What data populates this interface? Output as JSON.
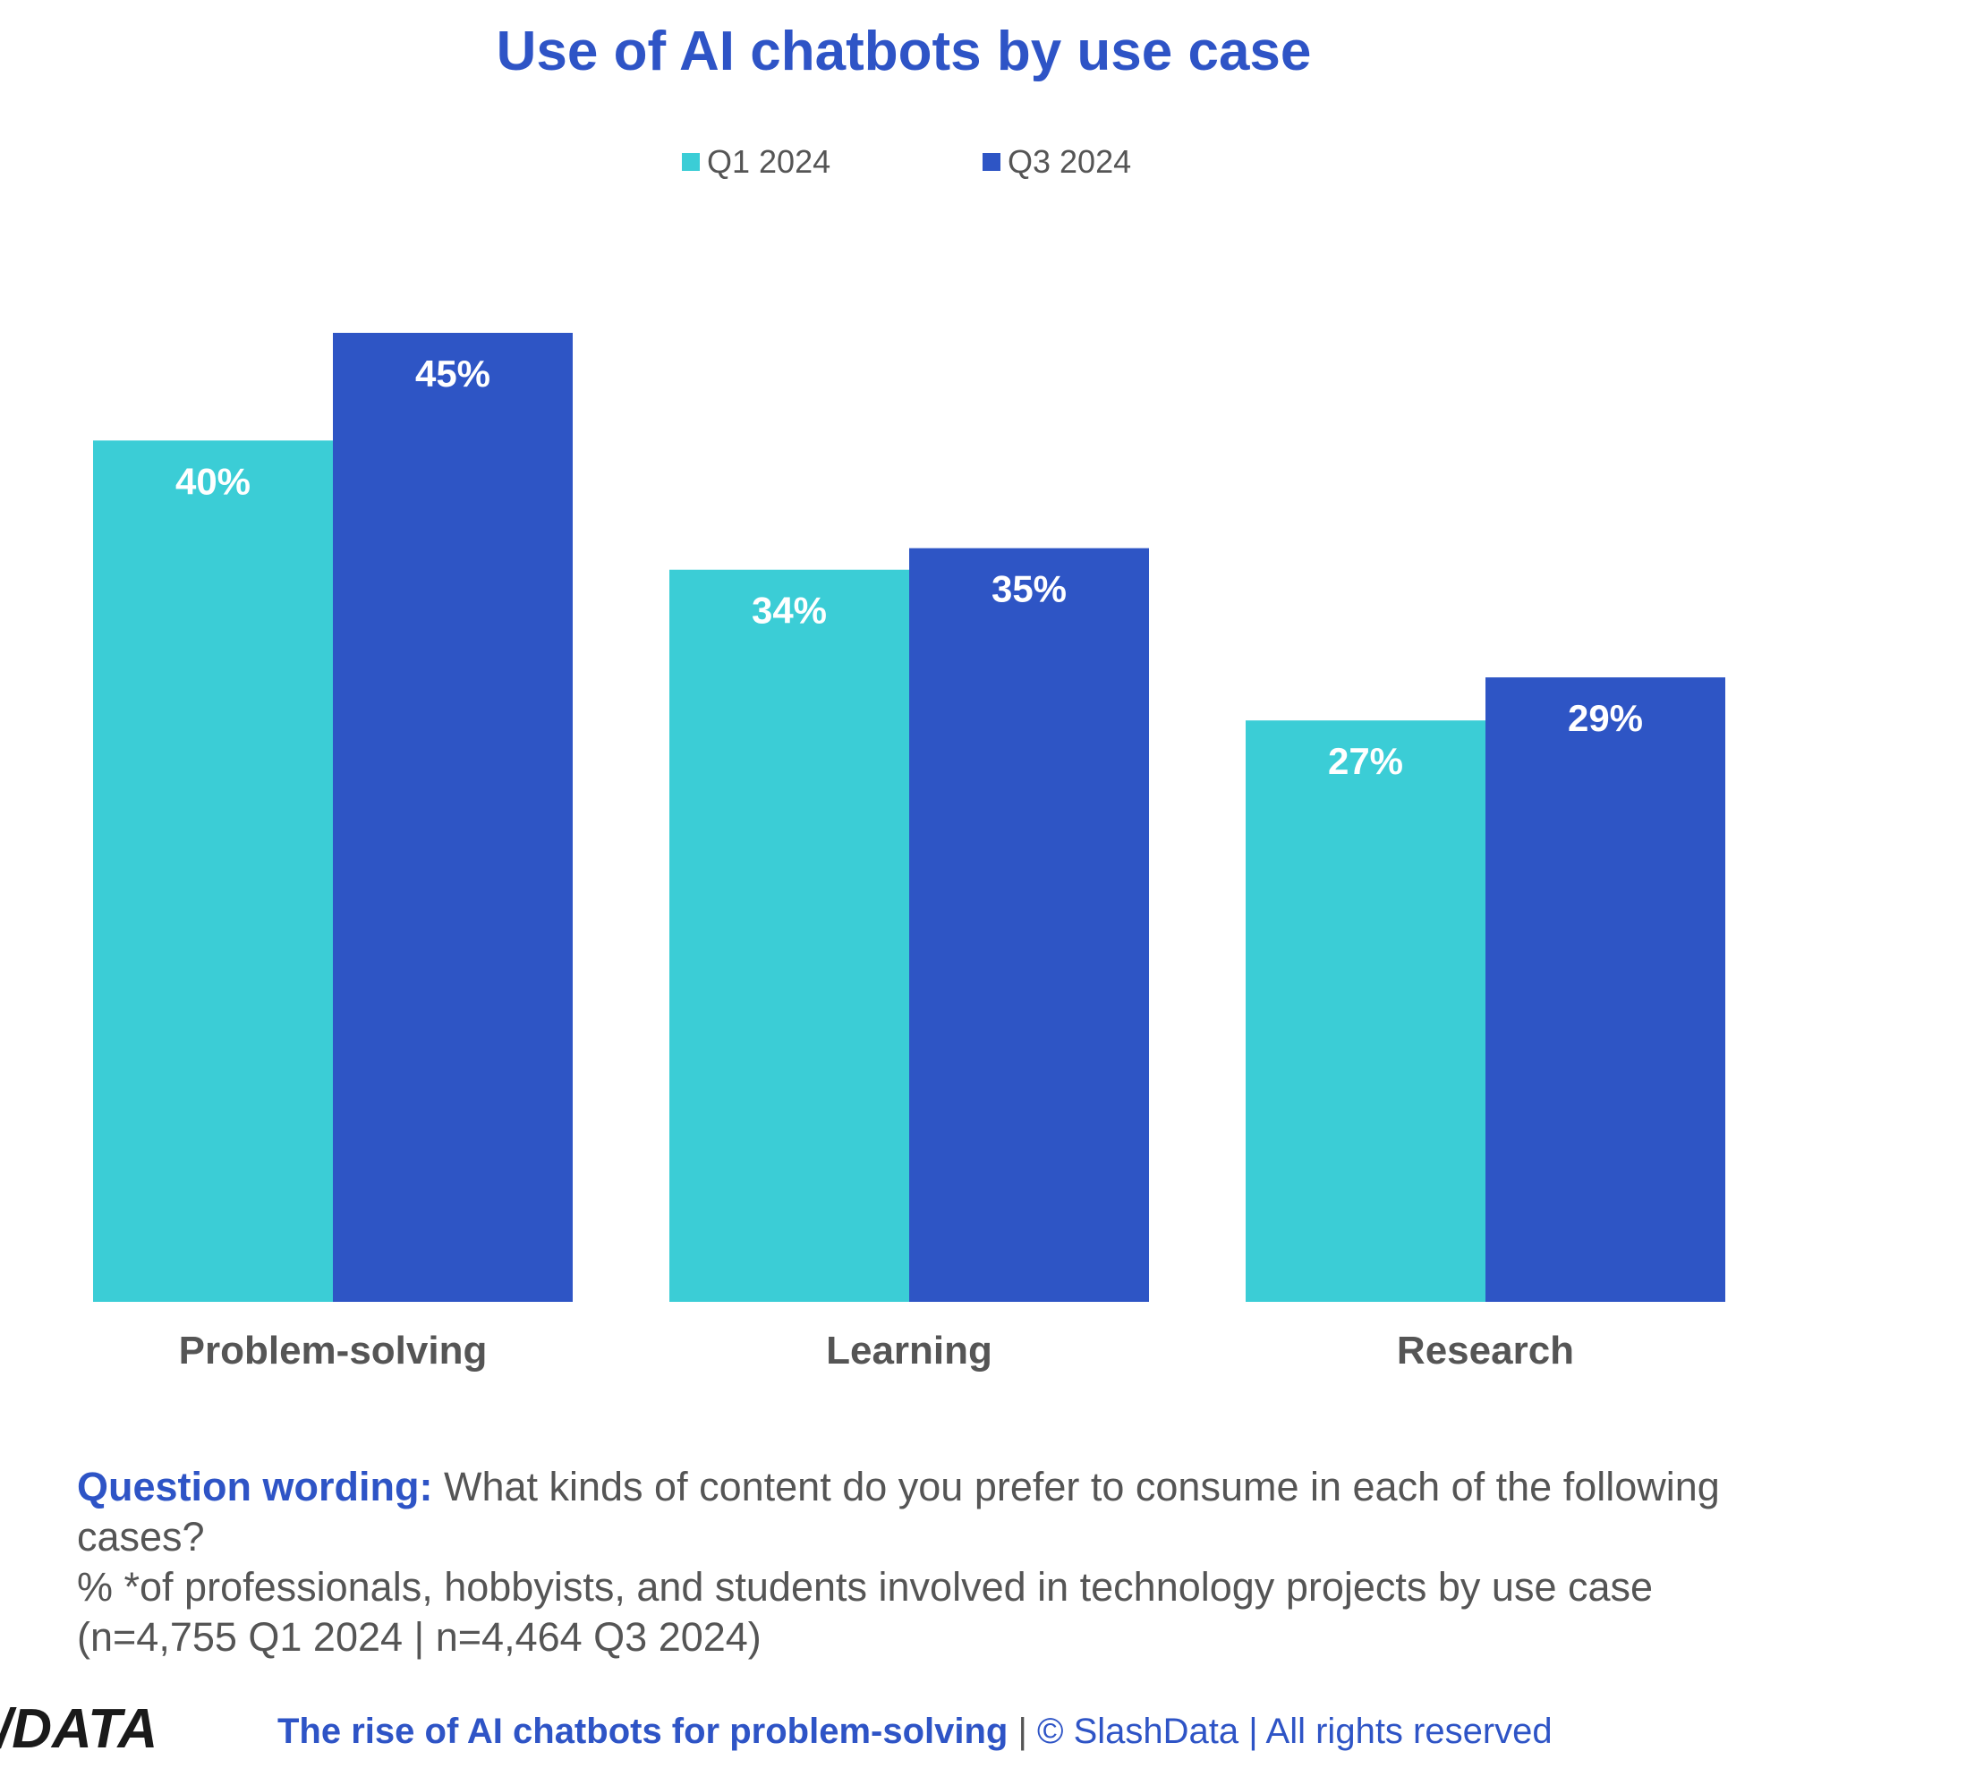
{
  "chart_data": {
    "type": "bar",
    "title": "Use of AI chatbots by use case",
    "categories": [
      "Problem-solving",
      "Learning",
      "Research"
    ],
    "series": [
      {
        "name": "Q1 2024",
        "color": "#3bcdd6",
        "values": [
          40,
          34,
          27
        ],
        "labels": [
          "40%",
          "34%",
          "27%"
        ]
      },
      {
        "name": "Q3 2024",
        "color": "#2e55c5",
        "values": [
          45,
          35,
          29
        ],
        "labels": [
          "45%",
          "35%",
          "29%"
        ]
      }
    ],
    "ylim": [
      0,
      45
    ],
    "grid": false,
    "legend_position": "top-center",
    "xlabel": "",
    "ylabel": ""
  },
  "footnote": {
    "label": "Question wording:",
    "question": " What kinds of content do you prefer to consume in each of the following cases?",
    "detail": "% *of professionals, hobbyists, and students involved in technology projects by use case (n=4,755 Q1 2024 | n=4,464 Q3 2024)"
  },
  "footer": {
    "logo_text": "/DATA",
    "report_title": "The rise of AI chatbots for problem-solving",
    "separator": " | ",
    "copyright": "© SlashData | All rights reserved"
  }
}
